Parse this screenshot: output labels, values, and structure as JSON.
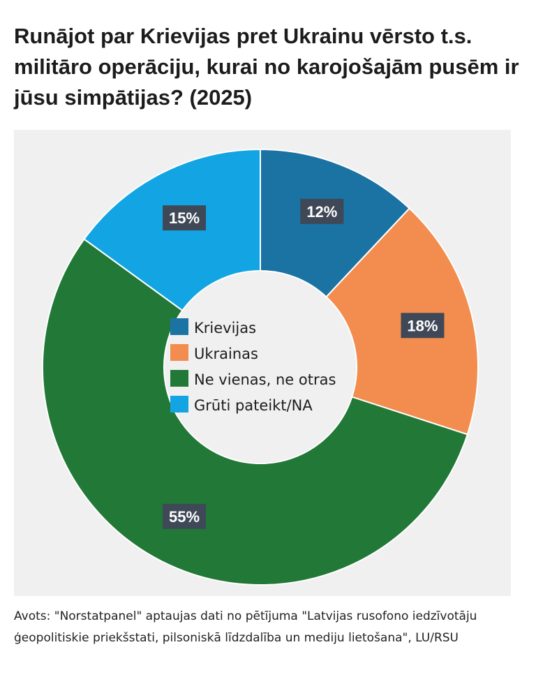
{
  "title": "Runājot par Krievijas pret Ukrainu vērsto t.s. militāro operāciju, kurai no karojošajām pusēm ir jūsu simpātijas? (2025)",
  "source": "Avots: \"Norstatpanel\" aptaujas dati no pētījuma \"Latvijas rusofono iedzīvotāju ģeopolitiskie priekšstati, pilsoniskā līdzdalība un mediju lietošana\", LU/RSU",
  "chart_data": {
    "type": "pie",
    "style": "donut",
    "start_angle": "top",
    "direction": "clockwise",
    "legend_position": "center",
    "categories": [
      "Krievijas",
      "Ukrainas",
      "Ne vienas, ne otras",
      "Grūti pateikt/NA"
    ],
    "values": [
      12,
      18,
      55,
      15
    ],
    "data_labels": [
      "12%",
      "18%",
      "55%",
      "15%"
    ],
    "colors": [
      "#1a73a2",
      "#f28d4f",
      "#227836",
      "#13a5e3"
    ],
    "label_box_color": "#3f4857"
  }
}
